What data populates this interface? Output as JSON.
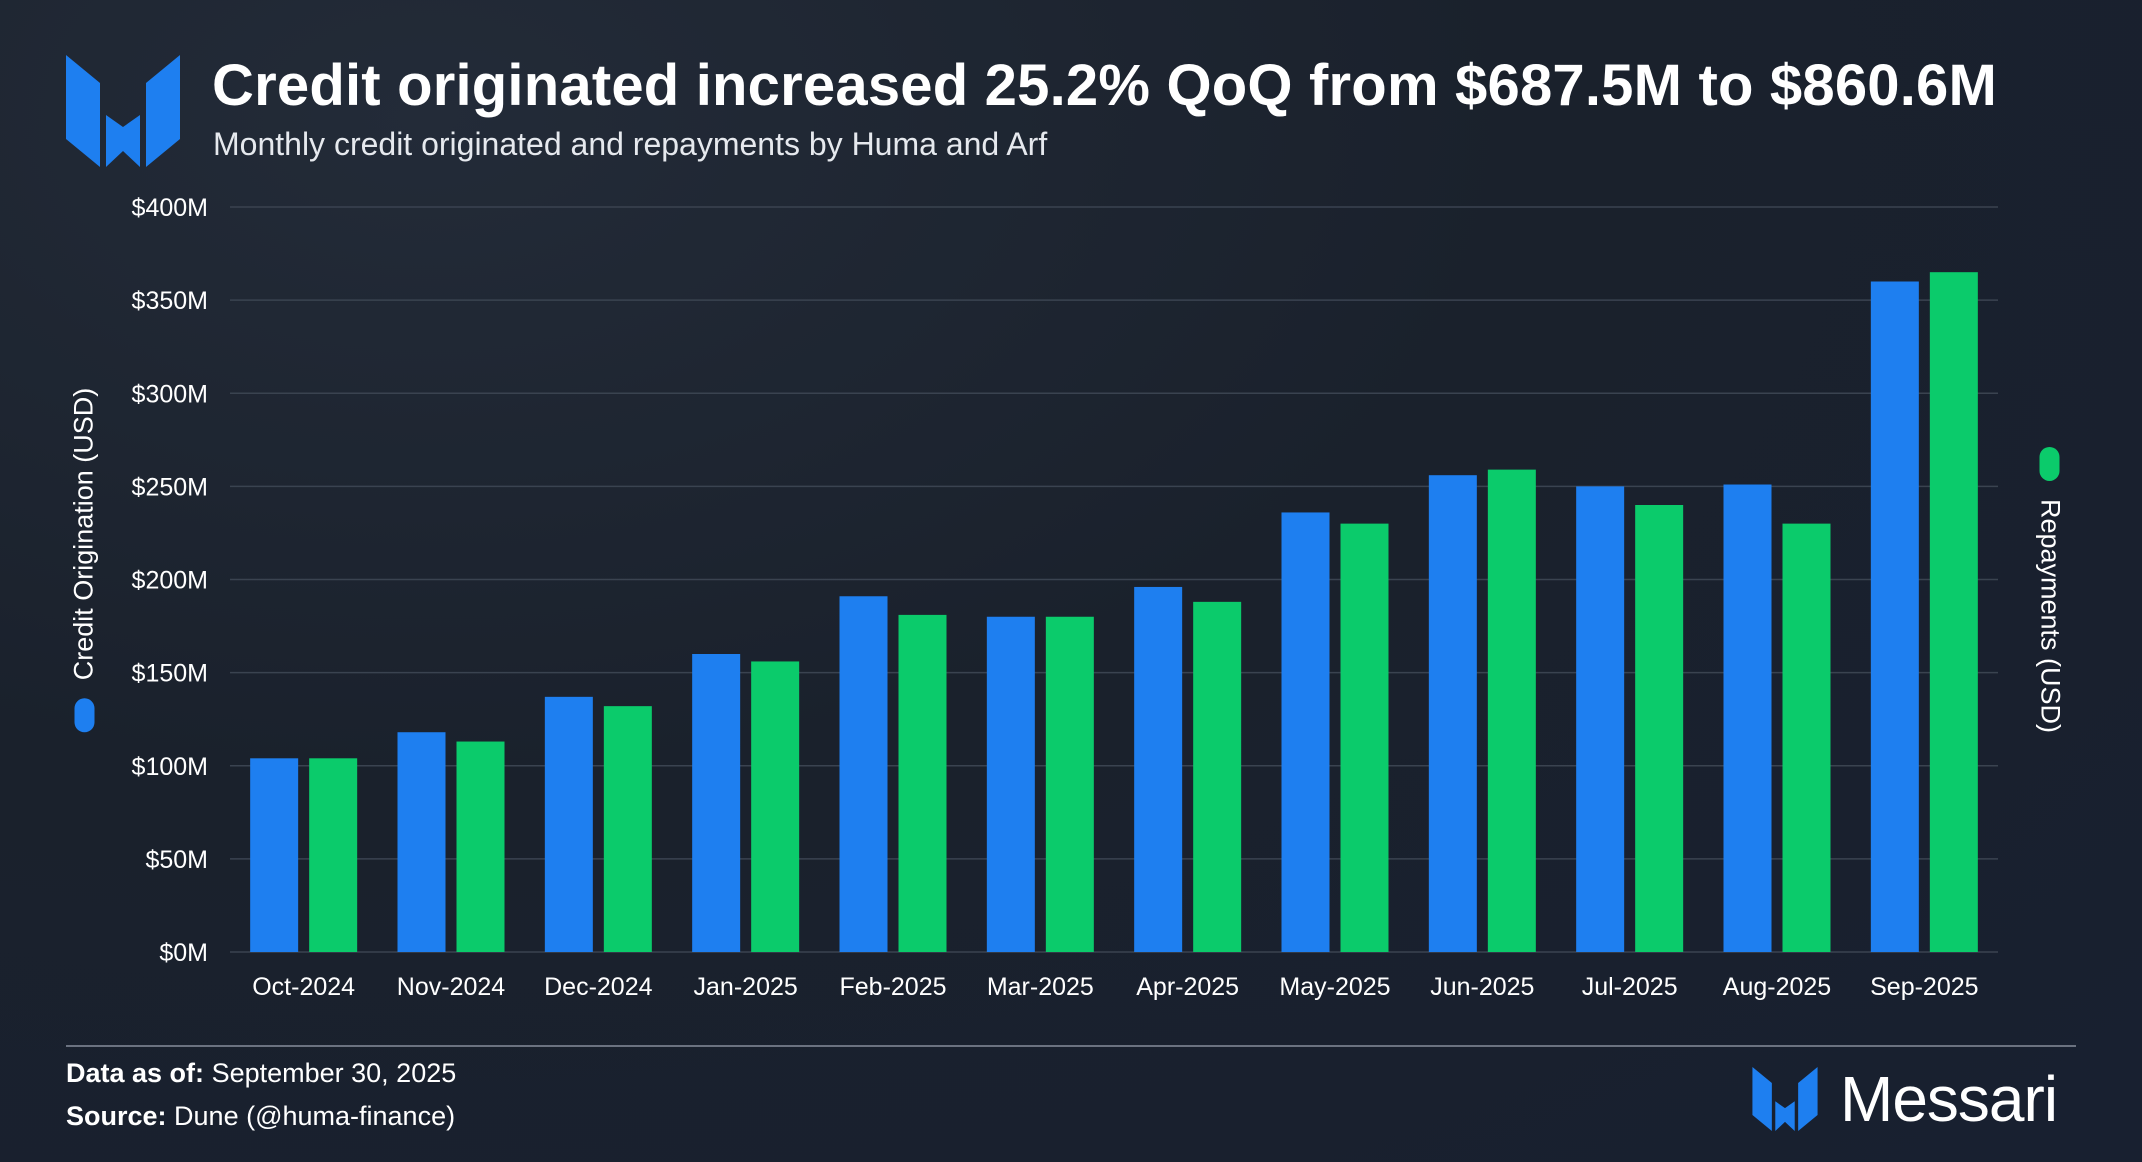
{
  "header": {
    "title": "Credit originated increased 25.2% QoQ from $687.5M to $860.6M",
    "subtitle": "Monthly credit originated and repayments by Huma and Arf"
  },
  "footer": {
    "data_as_of_label": "Data as of:",
    "data_as_of_value": "September 30, 2025",
    "source_label": "Source:",
    "source_value": "Dune (@huma-finance)"
  },
  "brand": {
    "name": "Messari"
  },
  "colors": {
    "credit": "#1e7ff0",
    "repayments": "#0bcb6b",
    "grid": "#3a4350",
    "text": "#ffffff"
  },
  "chart_data": {
    "type": "bar",
    "title": "Credit originated increased 25.2% QoQ from $687.5M to $860.6M",
    "subtitle": "Monthly credit originated and repayments by Huma and Arf",
    "categories": [
      "Oct-2024",
      "Nov-2024",
      "Dec-2024",
      "Jan-2025",
      "Feb-2025",
      "Mar-2025",
      "Apr-2025",
      "May-2025",
      "Jun-2025",
      "Jul-2025",
      "Aug-2025",
      "Sep-2025"
    ],
    "series": [
      {
        "name": "Credit Origination (USD)",
        "color": "#1e7ff0",
        "values": [
          104,
          118,
          137,
          160,
          191,
          180,
          196,
          236,
          256,
          250,
          251,
          360
        ]
      },
      {
        "name": "Repayments (USD)",
        "color": "#0bcb6b",
        "values": [
          104,
          113,
          132,
          156,
          181,
          180,
          188,
          230,
          259,
          240,
          230,
          365
        ]
      }
    ],
    "ylabel": "Credit Origination (USD)",
    "y2label": "Repayments (USD)",
    "ylim": [
      0,
      400
    ],
    "yticks": [
      0,
      50,
      100,
      150,
      200,
      250,
      300,
      350,
      400
    ],
    "ytick_labels": [
      "$0M",
      "$50M",
      "$100M",
      "$150M",
      "$200M",
      "$250M",
      "$300M",
      "$350M",
      "$400M"
    ],
    "units": "millions USD",
    "grid": true
  }
}
